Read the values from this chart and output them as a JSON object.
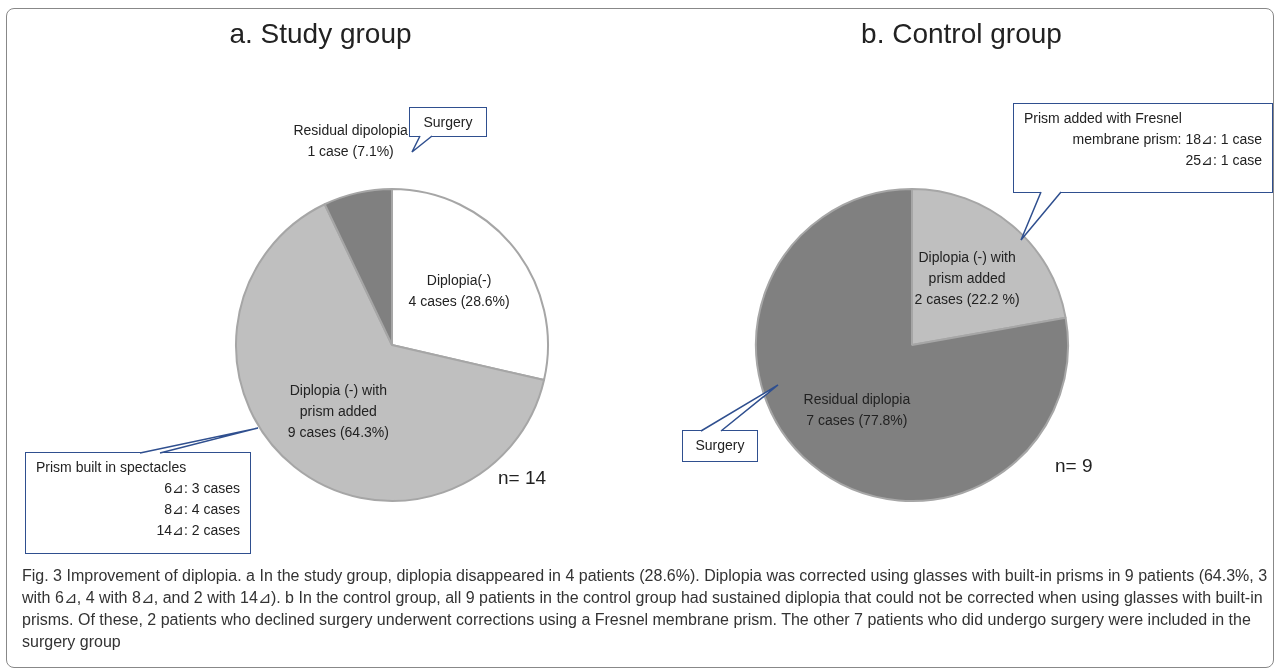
{
  "chart_data": [
    {
      "type": "pie",
      "title": "a.  Study group",
      "categories": [
        "Diplopia(-)",
        "Diplopia (-) with prism added",
        "Residual dipolopia"
      ],
      "values": [
        28.6,
        64.3,
        7.1
      ],
      "colors": [
        "#ffffff",
        "#bfbfbf",
        "#808080"
      ],
      "value_labels": [
        "4 cases (28.6%)",
        "9 cases (64.3%)",
        "1 case (7.1%)"
      ],
      "annotations": [
        "Surgery",
        "Prism built in spectacles\n6⊿: 3 cases\n8⊿: 4 cases\n14⊿: 2 cases",
        "n= 14",
        "Fig. 3  Improvement of diplopia. a In the study group, diplopia disappeared in 4 patients (28.6%). Diplopia was corrected using glasses with built-in prisms in 9 patients (64.3%, 3 with 6⊿, 4 with 8⊿, and 2 with 14⊿). b In the control group, all 9 patients in the control group had sustained diplopia that could not be corrected when using glasses with built-in prisms. Of these, 2 patients who declined surgery underwent corrections using a Fresnel membrane prism. The other 7 patients who did undergo surgery were included in the surgery group"
      ]
    },
    {
      "type": "pie",
      "title": "b.  Control group",
      "categories": [
        "Diplopia (-) with prism added",
        "Residual diplopia"
      ],
      "values": [
        22.2,
        77.8
      ],
      "colors": [
        "#bfbfbf",
        "#808080"
      ],
      "value_labels": [
        "2 cases (22.2 %)",
        "7 cases (77.8%)"
      ],
      "annotations": [
        "Surgery",
        "Prism added with Fresnel\nmembrane prism:  18⊿: 1 case\n25⊿: 1 case",
        "n= 9"
      ]
    }
  ]
}
